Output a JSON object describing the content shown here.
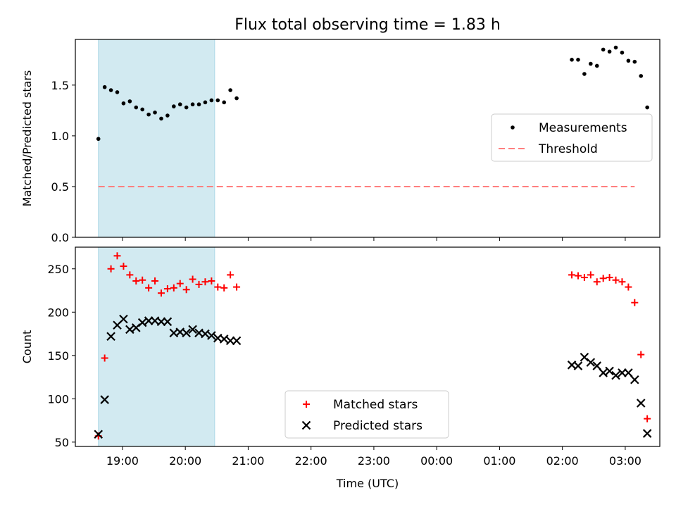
{
  "title": "Flux total observing time = 1.83 h",
  "colors": {
    "shade": "#add8e6",
    "measurement": "#000000",
    "threshold": "#ff7f7f",
    "matched": "#ff0000",
    "predicted": "#000000"
  },
  "chart_data": [
    {
      "type": "scatter",
      "ylabel": "Matched/Predicted stars",
      "ylim": [
        0,
        1.95
      ],
      "yticks": [
        "0.0",
        "0.5",
        "1.0",
        "1.5"
      ],
      "shaded_span": [
        "18:37",
        "20:28"
      ],
      "legend": {
        "placement": "center-right",
        "items": [
          "Measurements",
          "Threshold"
        ]
      },
      "threshold": {
        "name": "Threshold",
        "value": 0.5,
        "x_start": "18:37",
        "x_end": "03:09"
      },
      "series": [
        {
          "name": "Measurements",
          "x": [
            "18:37",
            "18:43",
            "18:49",
            "18:55",
            "19:01",
            "19:07",
            "19:13",
            "19:19",
            "19:25",
            "19:31",
            "19:37",
            "19:43",
            "19:49",
            "19:55",
            "20:01",
            "20:07",
            "20:13",
            "20:19",
            "20:25",
            "20:31",
            "20:37",
            "02:09",
            "02:15",
            "02:21",
            "02:27",
            "02:33",
            "02:39",
            "02:45",
            "02:51",
            "02:57",
            "03:03",
            "03:09"
          ],
          "values": [
            0.97,
            1.48,
            1.45,
            1.43,
            1.32,
            1.34,
            1.28,
            1.26,
            1.21,
            1.23,
            1.17,
            1.2,
            1.29,
            1.31,
            1.28,
            1.31,
            1.31,
            1.33,
            1.35,
            1.35,
            1.33,
            1.75,
            1.75,
            1.61,
            1.71,
            1.69,
            1.85,
            1.83,
            1.87,
            1.82,
            1.74,
            1.73
          ]
        }
      ],
      "extra_points": [
        {
          "x": "20:43",
          "value": 1.45
        },
        {
          "x": "20:49",
          "value": 1.37
        },
        {
          "x": "03:15",
          "value": 1.59
        },
        {
          "x": "03:21",
          "value": 1.28
        }
      ]
    },
    {
      "type": "scatter",
      "xlabel": "Time (UTC)",
      "ylabel": "Count",
      "ylim": [
        45,
        275
      ],
      "yticks": [
        "50",
        "100",
        "150",
        "200",
        "250"
      ],
      "xticks": [
        "19:00",
        "20:00",
        "21:00",
        "22:00",
        "23:00",
        "00:00",
        "01:00",
        "02:00",
        "03:00"
      ],
      "shaded_span": [
        "18:37",
        "20:28"
      ],
      "legend": {
        "placement": "lower-center",
        "items": [
          "Matched stars",
          "Predicted stars"
        ]
      },
      "series": [
        {
          "name": "Matched stars",
          "x": [
            "18:37",
            "18:43",
            "18:49",
            "18:55",
            "19:01",
            "19:07",
            "19:13",
            "19:19",
            "19:25",
            "19:31",
            "19:37",
            "19:43",
            "19:49",
            "19:55",
            "20:01",
            "20:07",
            "20:13",
            "20:19",
            "20:25",
            "20:31",
            "20:37",
            "20:43",
            "20:49",
            "02:09",
            "02:15",
            "02:21",
            "02:27",
            "02:33",
            "02:39",
            "02:45",
            "02:51",
            "02:57",
            "03:03",
            "03:09",
            "03:15",
            "03:21"
          ],
          "values": [
            57,
            147,
            250,
            265,
            253,
            243,
            236,
            237,
            228,
            236,
            222,
            227,
            228,
            233,
            226,
            238,
            232,
            235,
            236,
            229,
            228,
            243,
            229,
            243,
            242,
            240,
            243,
            235,
            239,
            240,
            237,
            235,
            229,
            211,
            151,
            77
          ]
        },
        {
          "name": "Predicted stars",
          "x": [
            "18:37",
            "18:43",
            "18:49",
            "18:55",
            "19:01",
            "19:07",
            "19:13",
            "19:19",
            "19:25",
            "19:31",
            "19:37",
            "19:43",
            "19:49",
            "19:55",
            "20:01",
            "20:07",
            "20:13",
            "20:19",
            "20:25",
            "20:31",
            "20:37",
            "20:43",
            "20:49",
            "02:09",
            "02:15",
            "02:21",
            "02:27",
            "02:33",
            "02:39",
            "02:45",
            "02:51",
            "02:57",
            "03:03",
            "03:09",
            "03:15",
            "03:21"
          ],
          "values": [
            59,
            99,
            172,
            185,
            192,
            180,
            182,
            188,
            190,
            190,
            189,
            189,
            176,
            177,
            176,
            180,
            176,
            175,
            173,
            170,
            169,
            167,
            167,
            139,
            138,
            148,
            142,
            138,
            130,
            132,
            127,
            130,
            130,
            122,
            95,
            60
          ]
        }
      ]
    }
  ]
}
